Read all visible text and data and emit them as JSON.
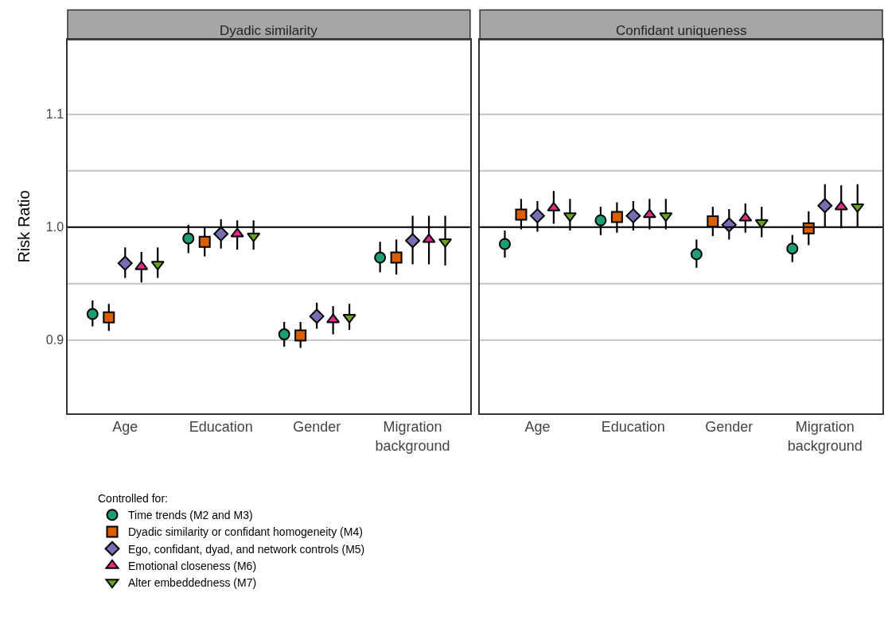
{
  "chart_data": [
    {
      "type": "scatter",
      "title": "Dyadic similarity",
      "ylabel": "Risk Ratio",
      "legend_title": "Controlled for:",
      "legend": "bottom",
      "grid": "y",
      "categories": [
        "Age",
        "Education",
        "Gender",
        "Migration background"
      ],
      "ylim": [
        0.835,
        1.166
      ],
      "yticks": [
        {
          "value": 0.9,
          "label": "0.9"
        },
        {
          "value": 0.95,
          "label": null
        },
        {
          "value": 1.0,
          "label": "1.0"
        },
        {
          "value": 1.05,
          "label": null
        },
        {
          "value": 1.1,
          "label": "1.1"
        }
      ],
      "ref_lines": [
        {
          "axis": "y",
          "value": 1.0,
          "color": "#000000"
        }
      ],
      "series": [
        {
          "name": "Time trends (M2 and M3)",
          "color": "#1b9e77",
          "marker": "circle",
          "values": [
            0.923,
            0.99,
            0.905,
            0.973
          ],
          "errors": [
            [
              0.912,
              0.935
            ],
            [
              0.977,
              1.002
            ],
            [
              0.894,
              0.916
            ],
            [
              0.96,
              0.987
            ]
          ]
        },
        {
          "name": "Dyadic similarity or confidant homogeneity (M4)",
          "color": "#d95f02",
          "marker": "square",
          "values": [
            0.92,
            0.987,
            0.904,
            0.973
          ],
          "errors": [
            [
              0.908,
              0.932
            ],
            [
              0.974,
              1.0
            ],
            [
              0.893,
              0.916
            ],
            [
              0.958,
              0.989
            ]
          ]
        },
        {
          "name": "Ego, confidant, dyad, and network controls (M5)",
          "color": "#7570b3",
          "marker": "diamond",
          "values": [
            0.968,
            0.994,
            0.921,
            0.988
          ],
          "errors": [
            [
              0.955,
              0.982
            ],
            [
              0.981,
              1.007
            ],
            [
              0.91,
              0.933
            ],
            [
              0.967,
              1.01
            ]
          ]
        },
        {
          "name": "Emotional closeness (M6)",
          "color": "#e7298a",
          "marker": "triangle",
          "values": [
            0.965,
            0.994,
            0.918,
            0.989
          ],
          "errors": [
            [
              0.951,
              0.978
            ],
            [
              0.98,
              1.006
            ],
            [
              0.905,
              0.93
            ],
            [
              0.967,
              1.01
            ]
          ]
        },
        {
          "name": "Alter embeddedness (M7)",
          "color": "#66a61e",
          "marker": "triangle-down",
          "values": [
            0.967,
            0.992,
            0.92,
            0.987
          ],
          "errors": [
            [
              0.955,
              0.982
            ],
            [
              0.98,
              1.006
            ],
            [
              0.909,
              0.932
            ],
            [
              0.966,
              1.01
            ]
          ]
        }
      ]
    },
    {
      "type": "scatter",
      "title": "Confidant uniqueness",
      "grid": "y",
      "tick_labels": "x",
      "categories": [
        "Age",
        "Education",
        "Gender",
        "Migration background"
      ],
      "ylim": [
        0.835,
        1.166
      ],
      "yticks": [
        {
          "value": 0.9,
          "label": null
        },
        {
          "value": 0.95,
          "label": null
        },
        {
          "value": 1.0,
          "label": null
        },
        {
          "value": 1.05,
          "label": null
        },
        {
          "value": 1.1,
          "label": null
        }
      ],
      "ref_lines": [
        {
          "axis": "y",
          "value": 1.0,
          "color": "#000000"
        }
      ],
      "series": [
        {
          "color": "#1b9e77",
          "marker": "circle",
          "values": [
            0.985,
            1.006,
            0.976,
            0.981
          ],
          "errors": [
            [
              0.973,
              0.997
            ],
            [
              0.993,
              1.018
            ],
            [
              0.964,
              0.989
            ],
            [
              0.969,
              0.993
            ]
          ]
        },
        {
          "color": "#d95f02",
          "marker": "square",
          "values": [
            1.011,
            1.009,
            1.005,
            0.999
          ],
          "errors": [
            [
              0.998,
              1.025
            ],
            [
              0.995,
              1.022
            ],
            [
              0.992,
              1.018
            ],
            [
              0.984,
              1.014
            ]
          ]
        },
        {
          "color": "#7570b3",
          "marker": "diamond",
          "values": [
            1.01,
            1.01,
            1.002,
            1.019
          ],
          "errors": [
            [
              0.996,
              1.023
            ],
            [
              0.997,
              1.023
            ],
            [
              0.989,
              1.016
            ],
            [
              1.0,
              1.038
            ]
          ]
        },
        {
          "color": "#e7298a",
          "marker": "triangle",
          "values": [
            1.017,
            1.011,
            1.008,
            1.018
          ],
          "errors": [
            [
              1.003,
              1.032
            ],
            [
              0.998,
              1.025
            ],
            [
              0.995,
              1.021
            ],
            [
              0.999,
              1.037
            ]
          ]
        },
        {
          "color": "#66a61e",
          "marker": "triangle-down",
          "values": [
            1.01,
            1.01,
            1.004,
            1.018
          ],
          "errors": [
            [
              0.997,
              1.025
            ],
            [
              0.998,
              1.025
            ],
            [
              0.991,
              1.018
            ],
            [
              1.0,
              1.038
            ]
          ]
        }
      ]
    }
  ]
}
